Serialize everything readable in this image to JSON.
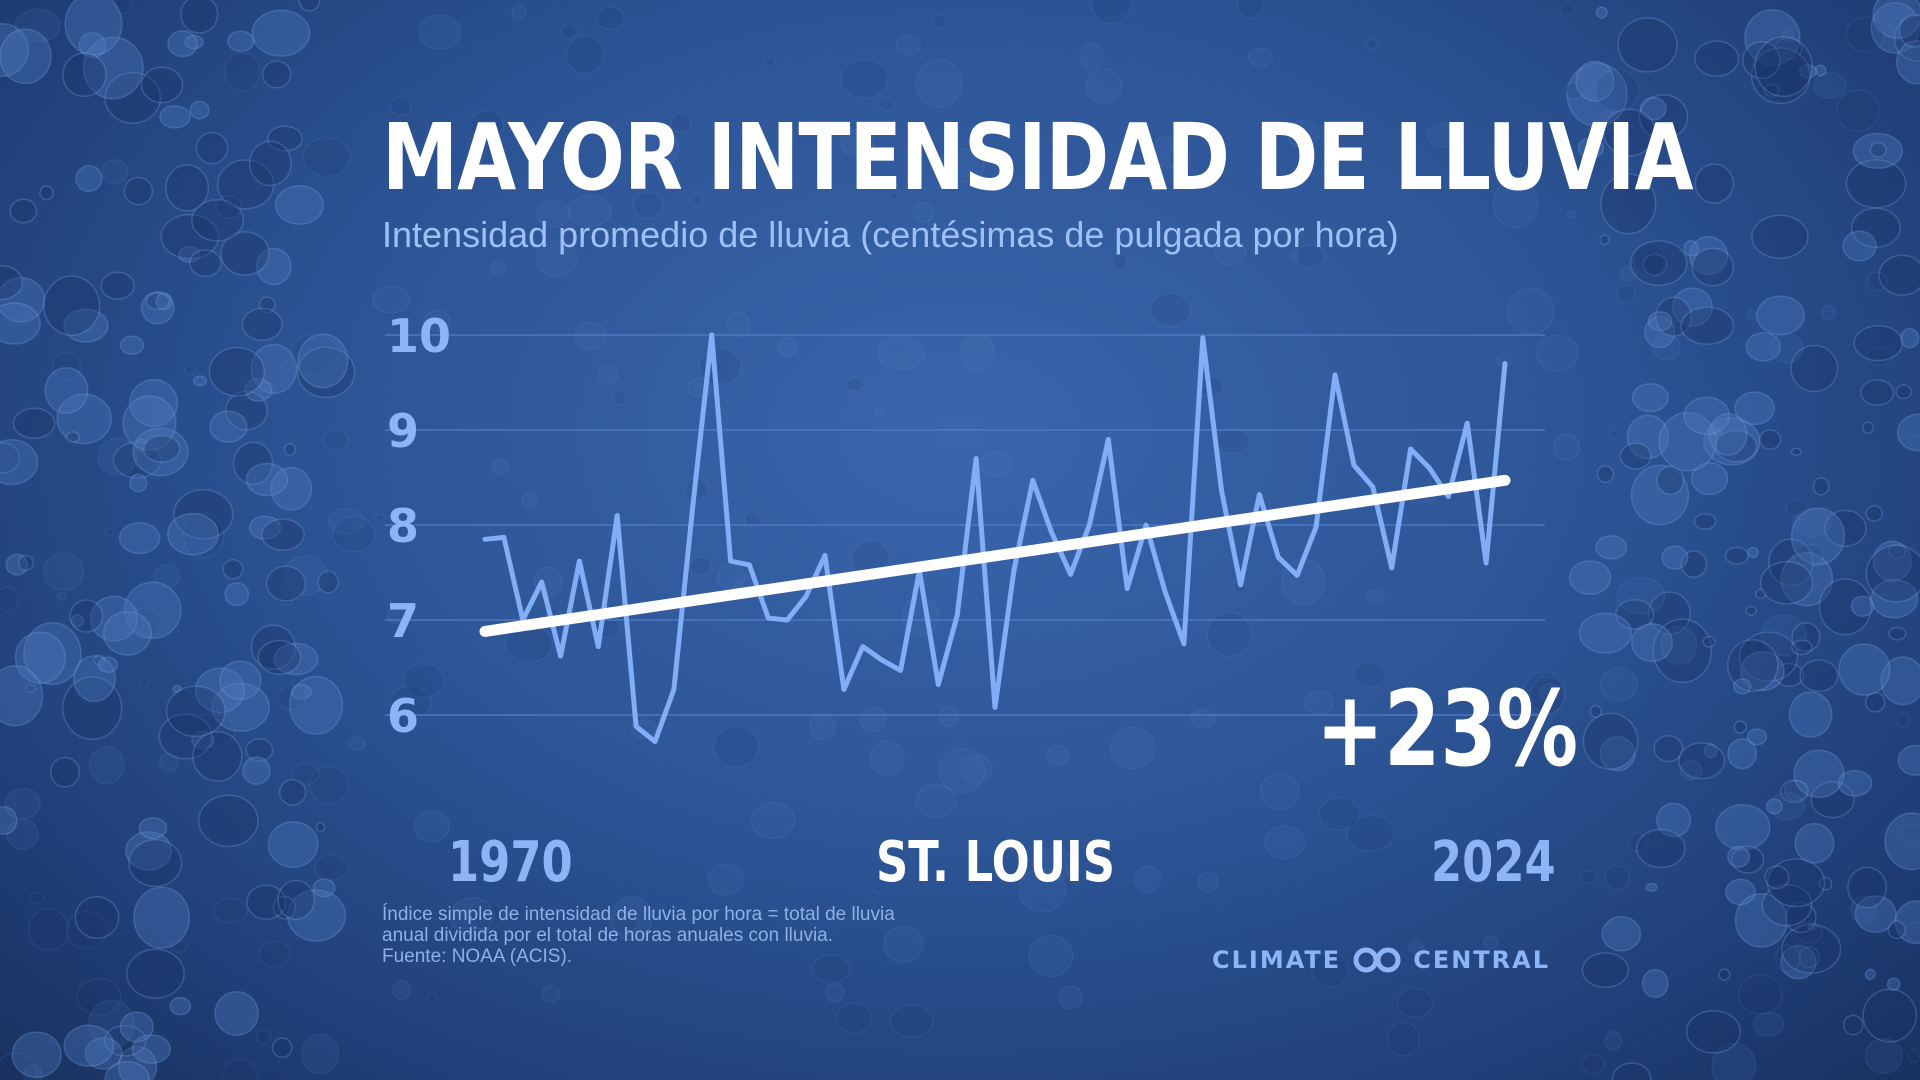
{
  "title": "MAYOR INTENSIDAD DE LLUVIA",
  "subtitle": "Intensidad promedio de lluvia (centésimas de pulgada por hora)",
  "change_label": "+23%",
  "city": "ST. LOUIS",
  "footnote": [
    "Índice simple de intensidad de lluvia por hora = total de lluvia",
    "anual dividida por el total de horas anuales con lluvia.",
    "Fuente: NOAA (ACIS)."
  ],
  "brand": {
    "left": "CLIMATE",
    "right": "CENTRAL",
    "icon": "climate-central-logo-icon"
  },
  "colors": {
    "series": "#82adf7",
    "trend": "#ffffff",
    "grid": "#4d79c2",
    "accent_text": "#8db5f6"
  },
  "chart_data": {
    "type": "line",
    "title": "MAYOR INTENSIDAD DE LLUVIA",
    "ylabel": "Intensidad promedio de lluvia (centésimas de pulgada por hora)",
    "x_tick_labels": [
      "1970",
      "2024"
    ],
    "xlim": [
      1970,
      2024
    ],
    "y_ticks": [
      6,
      7,
      8,
      9,
      10
    ],
    "ylim": [
      5.5,
      10
    ],
    "grid": true,
    "series": [
      {
        "x": [
          1970,
          1971,
          1972,
          1973,
          1974,
          1975,
          1976,
          1977,
          1978,
          1979,
          1980,
          1981,
          1982,
          1983,
          1984,
          1985,
          1986,
          1987,
          1988,
          1989,
          1990,
          1991,
          1992,
          1993,
          1994,
          1995,
          1996,
          1997,
          1998,
          1999,
          2000,
          2001,
          2002,
          2003,
          2004,
          2005,
          2006,
          2007,
          2008,
          2009,
          2010,
          2011,
          2012,
          2013,
          2014,
          2015,
          2016,
          2017,
          2018,
          2019,
          2020,
          2021,
          2022,
          2023,
          2024
        ],
        "values": [
          7.85,
          7.87,
          7.0,
          7.4,
          6.62,
          7.62,
          6.72,
          8.1,
          5.88,
          5.72,
          6.27,
          8.2,
          10.0,
          7.62,
          7.58,
          7.02,
          7.0,
          7.25,
          7.68,
          6.27,
          6.72,
          6.58,
          6.47,
          7.52,
          6.32,
          7.05,
          8.7,
          6.08,
          7.52,
          8.47,
          7.92,
          7.48,
          8.0,
          8.9,
          7.33,
          8.0,
          7.3,
          6.75,
          9.97,
          8.35,
          7.37,
          8.32,
          7.66,
          7.47,
          7.98,
          9.58,
          8.63,
          8.4,
          7.55,
          8.8,
          8.6,
          8.3,
          9.07,
          7.6,
          9.7
        ]
      }
    ],
    "trend": {
      "start": [
        1970,
        6.88
      ],
      "end": [
        2024,
        8.47
      ],
      "change": "+23%"
    }
  }
}
